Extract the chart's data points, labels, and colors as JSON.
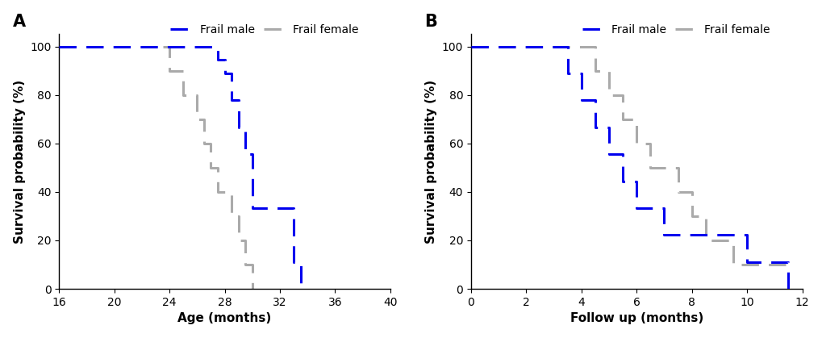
{
  "panel_A": {
    "title": "A",
    "xlabel": "Age (months)",
    "ylabel": "Survival probability (%)",
    "xlim": [
      16,
      40
    ],
    "ylim": [
      0,
      105
    ],
    "xticks": [
      16,
      20,
      24,
      28,
      32,
      36,
      40
    ],
    "yticks": [
      0,
      20,
      40,
      60,
      80,
      100
    ],
    "male_times": [
      16,
      27.0,
      27.5,
      28.0,
      28.5,
      29.0,
      29.5,
      30.0,
      33.0,
      33.5
    ],
    "male_surv": [
      100,
      100,
      94.4,
      88.9,
      77.8,
      66.7,
      55.6,
      33.3,
      11.1,
      0.0
    ],
    "female_times": [
      23.5,
      24.0,
      25.0,
      26.0,
      26.5,
      27.0,
      27.5,
      28.5,
      29.0,
      29.5,
      30.0
    ],
    "female_surv": [
      100,
      90.0,
      80.0,
      70.0,
      60.0,
      50.0,
      40.0,
      30.0,
      20.0,
      10.0,
      0.0
    ],
    "legend_labels": [
      "Frail male",
      "Frail female"
    ]
  },
  "panel_B": {
    "title": "B",
    "xlabel": "Follow up (months)",
    "ylabel": "Survival probability (%)",
    "xlim": [
      0,
      12
    ],
    "ylim": [
      0,
      105
    ],
    "xticks": [
      0,
      2,
      4,
      6,
      8,
      10,
      12
    ],
    "yticks": [
      0,
      20,
      40,
      60,
      80,
      100
    ],
    "male_times": [
      0,
      3.0,
      3.5,
      4.0,
      4.5,
      5.0,
      5.5,
      6.0,
      7.0,
      10.0,
      11.5
    ],
    "male_surv": [
      100,
      100,
      88.9,
      77.8,
      66.7,
      55.6,
      44.4,
      33.3,
      22.2,
      11.1,
      0.0
    ],
    "female_times": [
      0,
      4.0,
      4.5,
      5.0,
      5.5,
      6.0,
      6.5,
      7.5,
      8.0,
      8.5,
      9.5,
      10.0,
      11.5
    ],
    "female_surv": [
      100,
      100,
      90.0,
      80.0,
      70.0,
      60.0,
      50.0,
      40.0,
      30.0,
      20.0,
      10.0,
      10.0,
      10.0
    ],
    "legend_labels": [
      "Frail male",
      "Frail female"
    ]
  },
  "male_color": "#0000EE",
  "female_color": "#AAAAAA",
  "line_width": 2.2,
  "dash_on": 7,
  "dash_off": 4,
  "background_color": "#ffffff",
  "font_size_label": 11,
  "font_size_tick": 10,
  "font_size_title": 15,
  "font_size_legend": 10
}
